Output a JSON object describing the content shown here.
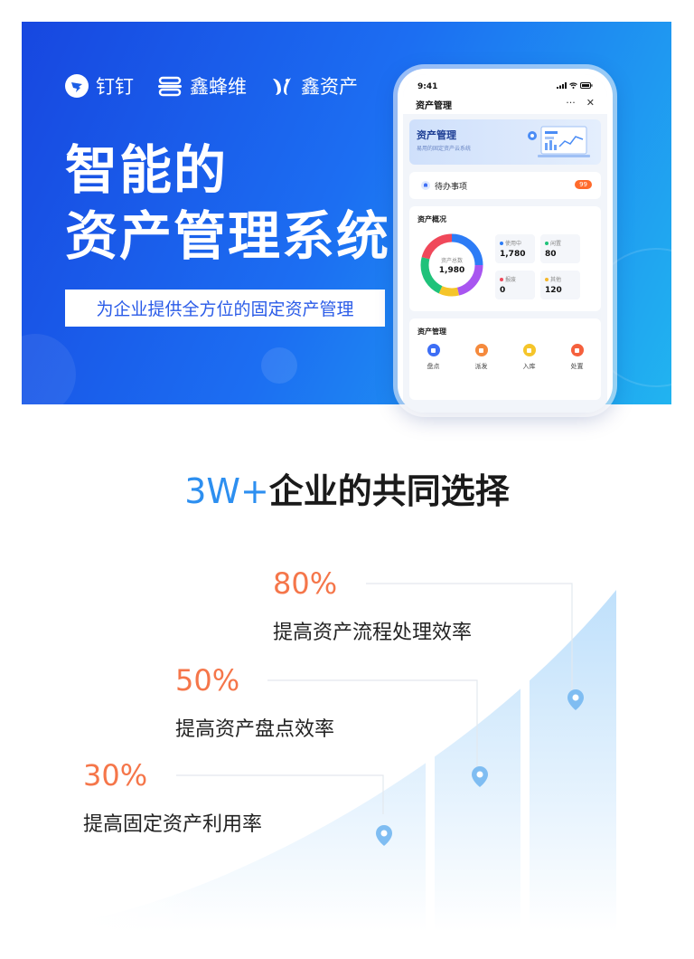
{
  "hero": {
    "brands": [
      {
        "name": "钉钉",
        "icon": "dingtalk-icon"
      },
      {
        "name": "鑫蜂维",
        "icon": "xinfengwei-logo-icon"
      },
      {
        "name": "鑫资产",
        "icon": "xinzichan-logo-icon"
      }
    ],
    "title_line1": "智能的",
    "title_line2": "资产管理系统",
    "subtitle": "为企业提供全方位的固定资产管理"
  },
  "phone": {
    "time": "9:41",
    "nav_title": "资产管理",
    "nav_more": "···",
    "nav_close": "✕",
    "banner_title": "资产管理",
    "banner_subtitle": "易用的固定资产云系统",
    "todo_label": "待办事项",
    "todo_count": "99",
    "overview_title": "资产概况",
    "total_label": "资产总数",
    "total_value": "1,980",
    "stats": [
      {
        "label": "使用中",
        "value": "1,780",
        "color": "#2d7cf6"
      },
      {
        "label": "闲置",
        "value": "80",
        "color": "#1fc27a"
      },
      {
        "label": "报废",
        "value": "0",
        "color": "#f0485a"
      },
      {
        "label": "其他",
        "value": "120",
        "color": "#f5b82a"
      }
    ],
    "mgmt_title": "资产管理",
    "mgmt_items": [
      {
        "label": "盘点",
        "color": "#3d6ef5",
        "icon": "inventory-icon"
      },
      {
        "label": "派发",
        "color": "#f58a3d",
        "icon": "dispatch-icon"
      },
      {
        "label": "入库",
        "color": "#f5c52a",
        "icon": "stock-in-icon"
      },
      {
        "label": "处置",
        "color": "#f5603d",
        "icon": "dispose-icon"
      }
    ]
  },
  "section2": {
    "title_highlight": "3W+",
    "title_rest": "企业的共同选择",
    "stats": [
      {
        "pct": "80%",
        "desc": "提高资产流程处理效率"
      },
      {
        "pct": "50%",
        "desc": "提高资产盘点效率"
      },
      {
        "pct": "30%",
        "desc": "提高固定资产利用率"
      }
    ]
  },
  "colors": {
    "hero_blue": "#1c6ef2",
    "accent_orange": "#f5764a",
    "accent_blue": "#2d8ff0",
    "pin_blue": "#7fbdf2"
  }
}
